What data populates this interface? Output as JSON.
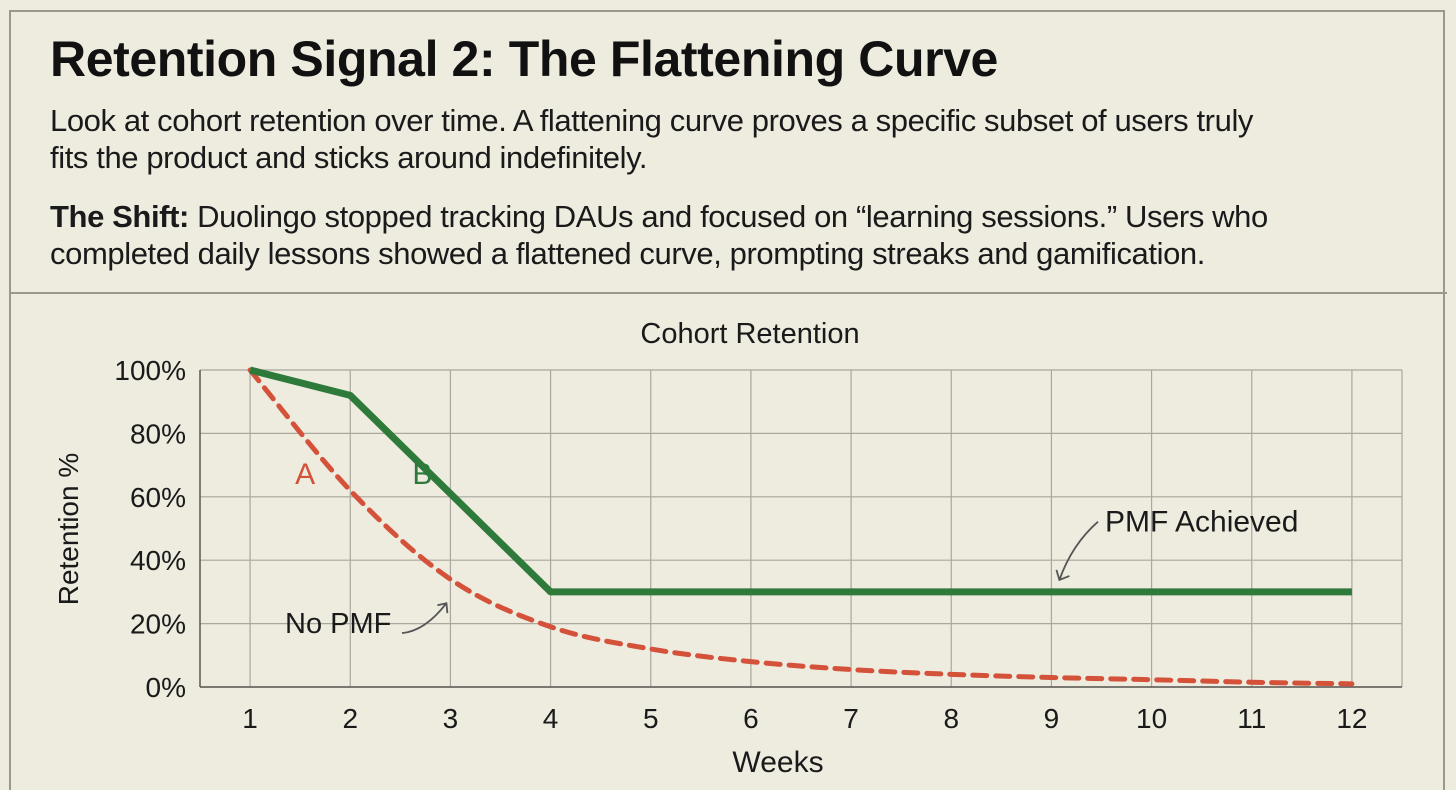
{
  "header": {
    "title": "Retention Signal 2: The Flattening Curve",
    "description_line1": "Look at cohort retention over time. A flattening curve proves a specific subset of users truly",
    "description_line2": "fits the product and sticks around indefinitely.",
    "shift_label": "The Shift:",
    "shift_line1": " Duolingo stopped tracking DAUs and focused on “learning sessions.” Users who",
    "shift_line2": "completed daily lessons showed a flattened curve, prompting streaks and gamification."
  },
  "chart_data": {
    "type": "line",
    "title": "Cohort Retention",
    "xlabel": "Weeks",
    "ylabel": "Retention %",
    "x": [
      1,
      2,
      3,
      4,
      5,
      6,
      7,
      8,
      9,
      10,
      11,
      12
    ],
    "xlim": [
      0.5,
      12.5
    ],
    "ylim": [
      0,
      100
    ],
    "yticks": [
      0,
      20,
      40,
      60,
      80,
      100
    ],
    "ytick_labels": [
      "0%",
      "20%",
      "40%",
      "60%",
      "80%",
      "100%"
    ],
    "grid": true,
    "series": [
      {
        "name": "A",
        "style": "dashed",
        "color": "#d4523a",
        "values": [
          100,
          62,
          34,
          19,
          12,
          8,
          5.5,
          4,
          3,
          2.3,
          1.5,
          1
        ]
      },
      {
        "name": "B",
        "style": "solid",
        "color": "#2e7a3a",
        "values": [
          100,
          92,
          61,
          30,
          30,
          30,
          30,
          30,
          30,
          30,
          30,
          30
        ]
      }
    ],
    "annotations": [
      {
        "text": "No PMF",
        "series": "A",
        "target": [
          3,
          34
        ]
      },
      {
        "text": "PMF Achieved",
        "series": "B",
        "target": [
          9,
          30
        ]
      }
    ]
  }
}
